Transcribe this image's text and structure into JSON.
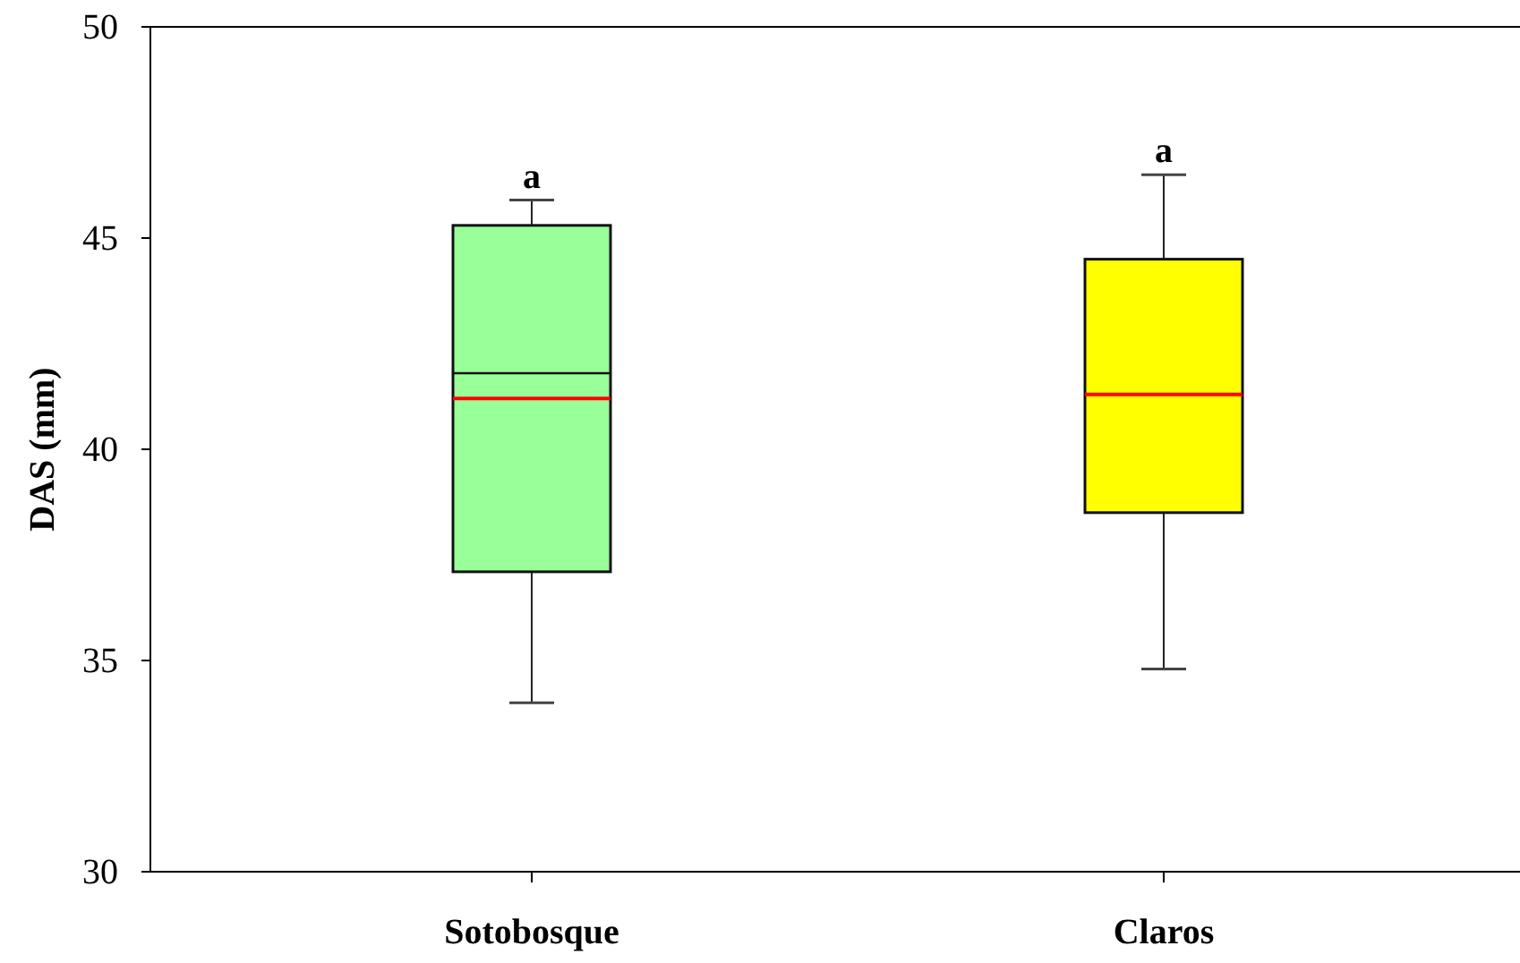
{
  "chart_data": {
    "type": "box",
    "ylabel": "DAS (mm)",
    "categories": [
      "Sotobosque",
      "Claros"
    ],
    "boxes": [
      {
        "low": 34.0,
        "q1": 37.1,
        "median": 41.8,
        "q3": 45.3,
        "high": 45.9,
        "mean": 41.2
      },
      {
        "low": 34.8,
        "q1": 38.5,
        "median": 41.3,
        "q3": 44.5,
        "high": 46.5,
        "mean": 41.3
      }
    ],
    "colors": [
      "#99ff99",
      "#ffff00"
    ],
    "ylim": [
      30,
      50
    ],
    "yticks": [
      30,
      35,
      40,
      45,
      50
    ],
    "annotations": [
      {
        "text": "a",
        "x": "Sotobosque",
        "y": 45.9
      },
      {
        "text": "a",
        "x": "Claros",
        "y": 46.5
      }
    ]
  }
}
